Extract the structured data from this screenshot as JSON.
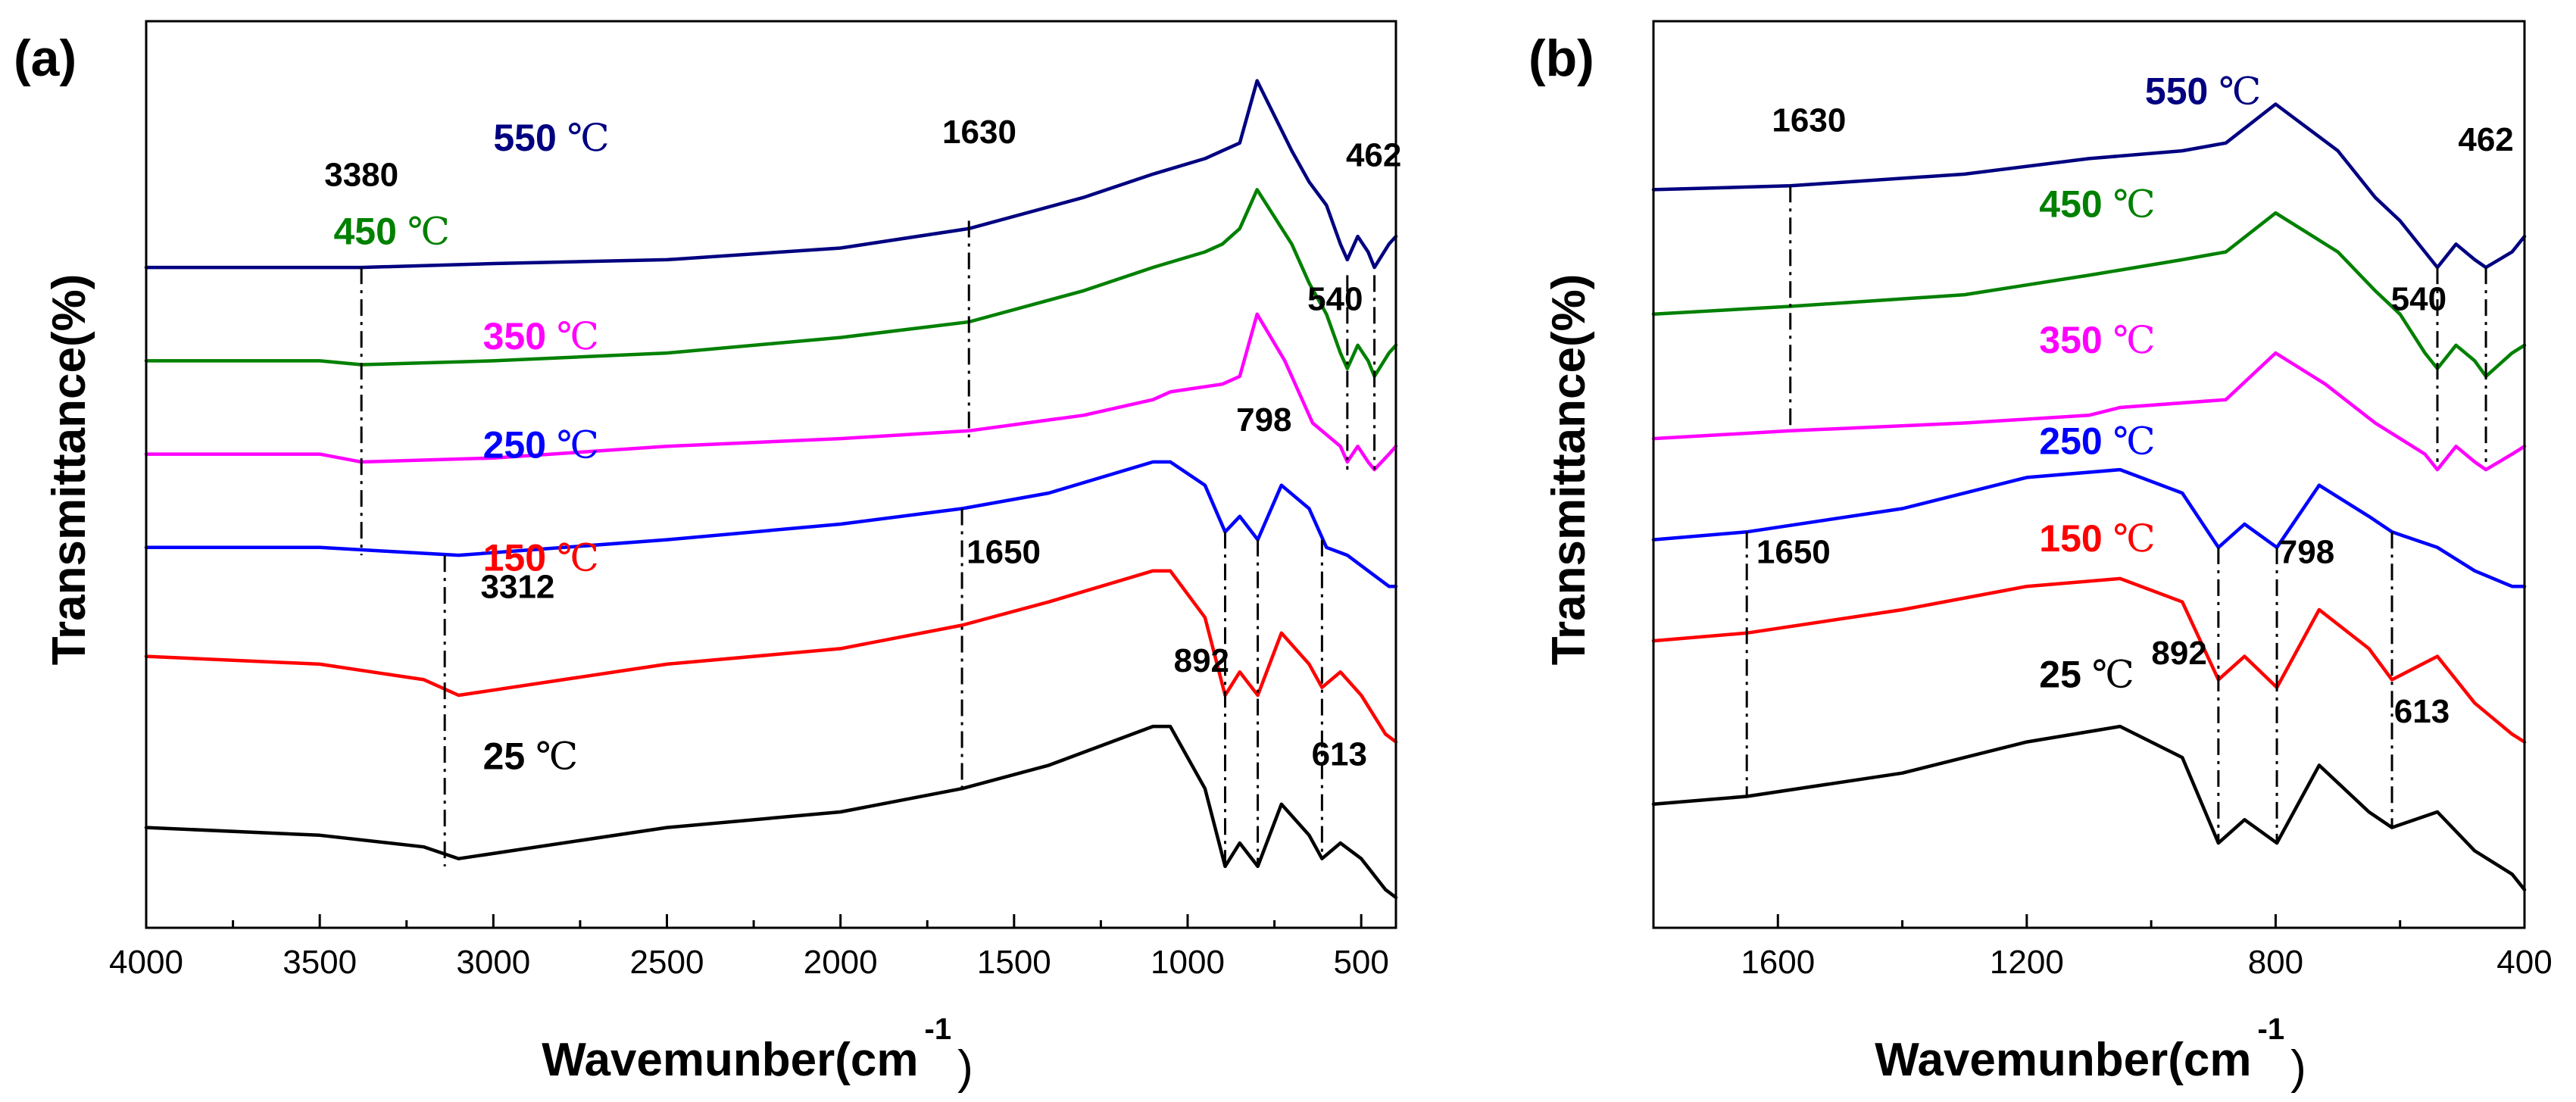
{
  "figure": {
    "ylabel": "Transmittance(%)",
    "xlabel_main": "Wavemunber(cm",
    "xlabel_sup": "-1",
    "xlabel_close": ")",
    "unit_symbol": "℃"
  },
  "colors": {
    "25": "#000000",
    "150": "#ff0000",
    "250": "#0000ff",
    "350": "#ff00ff",
    "450": "#008000",
    "550": "#000080"
  },
  "chart_data": [
    {
      "type": "line",
      "panel": "(a)",
      "xlabel": "Wavemunber(cm-1)",
      "ylabel": "Transmittance(%)",
      "xlim": [
        4000,
        400
      ],
      "ylim": [
        0,
        100
      ],
      "x_ticks": [
        4000,
        3500,
        3000,
        2500,
        2000,
        1500,
        1000,
        500
      ],
      "x_tick_labels": [
        "4000",
        "3500",
        "3000",
        "2500",
        "2000",
        "1500",
        "1000",
        "500"
      ],
      "legend": "inline labels above each curve",
      "series": [
        {
          "name": "25 ℃",
          "label_num": "25",
          "color": "#000000",
          "x": [
            4000,
            3500,
            3200,
            3100,
            2500,
            2000,
            1650,
            1400,
            1100,
            1050,
            950,
            892,
            850,
            798,
            730,
            650,
            613,
            560,
            500,
            430,
            400
          ],
          "y": [
            9,
            8,
            6.5,
            5,
            9,
            11,
            14,
            17,
            22,
            22,
            14,
            4,
            7,
            4,
            12,
            8,
            5,
            7,
            5,
            1,
            0
          ]
        },
        {
          "name": "150 ℃",
          "label_num": "150",
          "color": "#ff0000",
          "x": [
            4000,
            3500,
            3200,
            3100,
            2500,
            2000,
            1650,
            1400,
            1100,
            1050,
            950,
            892,
            850,
            798,
            730,
            650,
            613,
            560,
            500,
            430,
            400
          ],
          "y": [
            31,
            30,
            28,
            26,
            30,
            32,
            35,
            38,
            42,
            42,
            36,
            26,
            29,
            26,
            34,
            30,
            27,
            29,
            26,
            21,
            20
          ]
        },
        {
          "name": "250 ℃",
          "label_num": "250",
          "color": "#0000ff",
          "x": [
            4000,
            3500,
            3300,
            3100,
            2500,
            2000,
            1650,
            1400,
            1100,
            1050,
            950,
            892,
            850,
            798,
            730,
            650,
            600,
            540,
            480,
            420,
            400
          ],
          "y": [
            45,
            45,
            44.5,
            44,
            46,
            48,
            50,
            52,
            56,
            56,
            53,
            47,
            49,
            46,
            53,
            50,
            45,
            44,
            42,
            40,
            40
          ]
        },
        {
          "name": "350 ℃",
          "label_num": "350",
          "color": "#ff00ff",
          "x": [
            4000,
            3500,
            3380,
            3000,
            2500,
            2000,
            1630,
            1300,
            1100,
            1050,
            900,
            850,
            800,
            720,
            640,
            560,
            540,
            510,
            480,
            462,
            420,
            400
          ],
          "y": [
            57,
            57,
            56,
            56.5,
            58,
            59,
            60,
            62,
            64,
            65,
            66,
            67,
            75,
            69,
            61,
            58,
            56,
            58,
            56,
            55,
            57,
            58
          ]
        },
        {
          "name": "450 ℃",
          "label_num": "450",
          "color": "#008000",
          "x": [
            4000,
            3500,
            3380,
            3000,
            2500,
            2000,
            1630,
            1300,
            1100,
            950,
            900,
            850,
            800,
            700,
            650,
            600,
            560,
            540,
            510,
            480,
            462,
            420,
            400
          ],
          "y": [
            69,
            69,
            68.5,
            69,
            70,
            72,
            74,
            78,
            81,
            83,
            84,
            86,
            91,
            84,
            79,
            75,
            70,
            68,
            71,
            69,
            67,
            70,
            71
          ]
        },
        {
          "name": "550 ℃",
          "label_num": "550",
          "color": "#000080",
          "x": [
            4000,
            3500,
            3380,
            3000,
            2500,
            2000,
            1630,
            1300,
            1100,
            950,
            900,
            850,
            800,
            700,
            650,
            600,
            560,
            540,
            510,
            480,
            462,
            420,
            400
          ],
          "y": [
            81,
            81,
            81,
            81.5,
            82,
            83.5,
            86,
            90,
            93,
            95,
            96,
            97,
            105,
            96,
            92,
            89,
            84,
            82,
            85,
            83,
            81,
            84,
            85
          ]
        }
      ],
      "temp_labels": [
        {
          "series": "550",
          "x": 3000,
          "y": 96
        },
        {
          "series": "450",
          "x": 3460,
          "y": 84
        },
        {
          "series": "350",
          "x": 3030,
          "y": 70.5
        },
        {
          "series": "250",
          "x": 3030,
          "y": 56.5
        },
        {
          "series": "150",
          "x": 3030,
          "y": 42
        },
        {
          "series": "25",
          "x": 3030,
          "y": 16.5
        }
      ],
      "annotations": [
        {
          "text": "3380",
          "x": 3380,
          "y": 91.5
        },
        {
          "text": "1630",
          "x": 1600,
          "y": 97
        },
        {
          "text": "462",
          "x": 464,
          "y": 94
        },
        {
          "text": "540",
          "x": 575,
          "y": 75.5
        },
        {
          "text": "798",
          "x": 780,
          "y": 60
        },
        {
          "text": "1650",
          "x": 1530,
          "y": 43
        },
        {
          "text": "3312",
          "x": 2930,
          "y": 38.5
        },
        {
          "text": "892",
          "x": 960,
          "y": 29
        },
        {
          "text": "613",
          "x": 563,
          "y": 17
        }
      ],
      "markers": [
        {
          "x": 3380,
          "y_top": 81,
          "y_bottom": 44
        },
        {
          "x": 1630,
          "y_top": 87,
          "y_bottom": 59
        },
        {
          "x": 540,
          "y_top": 80,
          "y_bottom": 55
        },
        {
          "x": 462,
          "y_top": 80,
          "y_bottom": 55
        },
        {
          "x": 3140,
          "y_top": 44,
          "y_bottom": 4
        },
        {
          "x": 1650,
          "y_top": 50,
          "y_bottom": 14
        },
        {
          "x": 892,
          "y_top": 47,
          "y_bottom": 4
        },
        {
          "x": 798,
          "y_top": 46,
          "y_bottom": 4
        },
        {
          "x": 613,
          "y_top": 46,
          "y_bottom": 5
        }
      ]
    },
    {
      "type": "line",
      "panel": "(b)",
      "xlabel": "Wavemunber(cm-1)",
      "ylabel": "Transmittance(%)",
      "xlim": [
        1800,
        400
      ],
      "ylim": [
        0,
        100
      ],
      "x_ticks": [
        1600,
        1200,
        800,
        400
      ],
      "x_tick_labels": [
        "1600",
        "1200",
        "800",
        "400"
      ],
      "legend": "inline labels above each curve",
      "series": [
        {
          "name": "25 ℃",
          "label_num": "25",
          "color": "#000000",
          "x": [
            1800,
            1650,
            1400,
            1200,
            1050,
            950,
            892,
            850,
            798,
            730,
            650,
            613,
            540,
            480,
            420,
            400
          ],
          "y": [
            12,
            13,
            16,
            20,
            22,
            18,
            7,
            10,
            7,
            17,
            11,
            9,
            11,
            6,
            3,
            1
          ]
        },
        {
          "name": "150 ℃",
          "label_num": "150",
          "color": "#ff0000",
          "x": [
            1800,
            1650,
            1400,
            1200,
            1050,
            950,
            892,
            850,
            798,
            730,
            650,
            613,
            540,
            480,
            420,
            400
          ],
          "y": [
            33,
            34,
            37,
            40,
            41,
            38,
            28,
            31,
            27,
            37,
            32,
            28,
            31,
            25,
            21,
            20
          ]
        },
        {
          "name": "250 ℃",
          "label_num": "250",
          "color": "#0000ff",
          "x": [
            1800,
            1650,
            1400,
            1200,
            1050,
            950,
            892,
            850,
            798,
            730,
            650,
            613,
            540,
            480,
            420,
            400
          ],
          "y": [
            46,
            47,
            50,
            54,
            55,
            52,
            45,
            48,
            45,
            53,
            49,
            47,
            45,
            42,
            40,
            40
          ]
        },
        {
          "name": "350 ℃",
          "label_num": "350",
          "color": "#ff00ff",
          "x": [
            1800,
            1580,
            1300,
            1100,
            1050,
            880,
            800,
            720,
            640,
            560,
            540,
            510,
            480,
            462,
            420,
            400
          ],
          "y": [
            59,
            60,
            61,
            62,
            63,
            64,
            70,
            66,
            61,
            57,
            55,
            58,
            56,
            55,
            57,
            58
          ]
        },
        {
          "name": "450 ℃",
          "label_num": "450",
          "color": "#008000",
          "x": [
            1800,
            1580,
            1300,
            1100,
            950,
            880,
            800,
            700,
            640,
            600,
            560,
            540,
            510,
            480,
            462,
            420,
            400
          ],
          "y": [
            75,
            76,
            77.5,
            80,
            82,
            83,
            88,
            83,
            78,
            75,
            70,
            68,
            71,
            69,
            67,
            70,
            71
          ]
        },
        {
          "name": "550 ℃",
          "label_num": "550",
          "color": "#000080",
          "x": [
            1800,
            1580,
            1300,
            1100,
            950,
            880,
            800,
            700,
            640,
            600,
            560,
            540,
            510,
            480,
            462,
            420,
            400
          ],
          "y": [
            91,
            91.5,
            93,
            95,
            96,
            97,
            102,
            96,
            90,
            87,
            83,
            81,
            84,
            82,
            81,
            83,
            85
          ]
        }
      ],
      "temp_labels": [
        {
          "series": "550",
          "x": 1010,
          "y": 102
        },
        {
          "series": "450",
          "x": 1180,
          "y": 87.5
        },
        {
          "series": "350",
          "x": 1180,
          "y": 70
        },
        {
          "series": "250",
          "x": 1180,
          "y": 57
        },
        {
          "series": "150",
          "x": 1180,
          "y": 44.5
        },
        {
          "series": "25",
          "x": 1180,
          "y": 27
        }
      ],
      "annotations": [
        {
          "text": "1630",
          "x": 1550,
          "y": 98.5
        },
        {
          "text": "462",
          "x": 462,
          "y": 96
        },
        {
          "text": "540",
          "x": 570,
          "y": 75.5
        },
        {
          "text": "1650",
          "x": 1575,
          "y": 43
        },
        {
          "text": "798",
          "x": 750,
          "y": 43
        },
        {
          "text": "892",
          "x": 955,
          "y": 30
        },
        {
          "text": "613",
          "x": 565,
          "y": 22.5
        }
      ],
      "markers": [
        {
          "x": 1580,
          "y_top": 91.5,
          "y_bottom": 60
        },
        {
          "x": 540,
          "y_top": 81,
          "y_bottom": 56
        },
        {
          "x": 462,
          "y_top": 81,
          "y_bottom": 56
        },
        {
          "x": 1650,
          "y_top": 47,
          "y_bottom": 13
        },
        {
          "x": 892,
          "y_top": 45,
          "y_bottom": 7
        },
        {
          "x": 798,
          "y_top": 45,
          "y_bottom": 7
        },
        {
          "x": 613,
          "y_top": 47,
          "y_bottom": 9
        }
      ]
    }
  ]
}
